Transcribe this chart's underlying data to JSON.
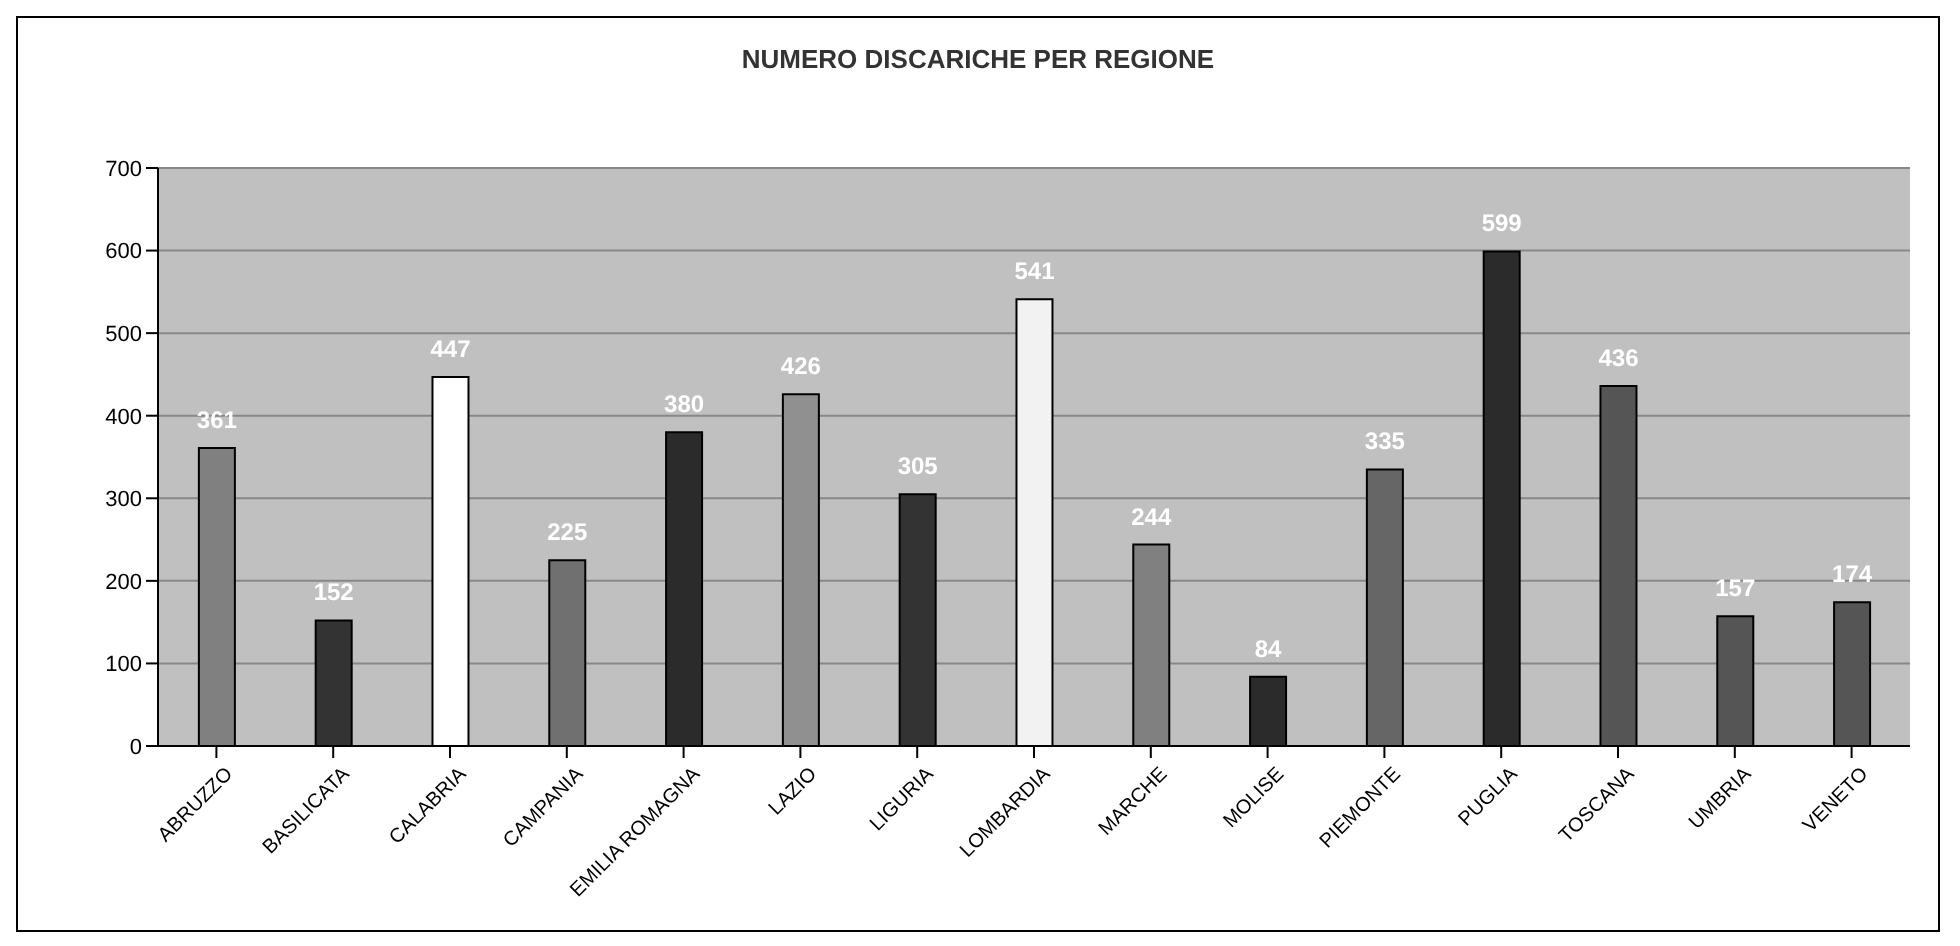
{
  "chart_data": {
    "type": "bar",
    "title": "NUMERO DISCARICHE PER REGIONE",
    "categories": [
      "ABRUZZO",
      "BASILICATA",
      "CALABRIA",
      "CAMPANIA",
      "EMILIA ROMAGNA",
      "LAZIO",
      "LIGURIA",
      "LOMBARDIA",
      "MARCHE",
      "MOLISE",
      "PIEMONTE",
      "PUGLIA",
      "TOSCANA",
      "UMBRIA",
      "VENETO"
    ],
    "values": [
      361,
      152,
      447,
      225,
      380,
      426,
      305,
      541,
      244,
      84,
      335,
      599,
      436,
      157,
      174
    ],
    "colors": [
      "#808080",
      "#333333",
      "#ffffff",
      "#707070",
      "#2b2b2b",
      "#909090",
      "#333333",
      "#f2f2f2",
      "#808080",
      "#2b2b2b",
      "#666666",
      "#2b2b2b",
      "#555555",
      "#555555",
      "#555555"
    ],
    "ylim": [
      0,
      700
    ],
    "yticks": [
      0,
      100,
      200,
      300,
      400,
      500,
      600,
      700
    ],
    "grid": "y",
    "data_labels": true
  }
}
